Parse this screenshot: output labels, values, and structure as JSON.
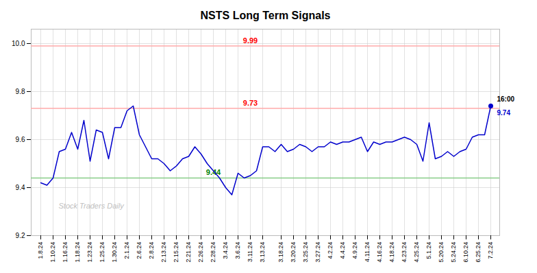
{
  "chart_data": {
    "type": "line",
    "title": "NSTS Long Term Signals",
    "categories": [
      "1.8.24",
      null,
      "1.10.24",
      null,
      "1.16.24",
      null,
      "1.18.24",
      null,
      "1.23.24",
      null,
      "1.25.24",
      null,
      "1.30.24",
      null,
      "2.1.24",
      null,
      "2.6.24",
      null,
      "2.8.24",
      null,
      "2.13.24",
      null,
      "2.15.24",
      null,
      "2.21.24",
      null,
      "2.26.24",
      null,
      "2.28.24",
      null,
      "3.4.24",
      null,
      "3.6.24",
      null,
      "3.11.24",
      null,
      "3.13.24",
      null,
      null,
      "3.18.24",
      null,
      "3.20.24",
      null,
      "3.25.24",
      null,
      "3.27.24",
      null,
      "4.2.24",
      null,
      "4.4.24",
      null,
      "4.9.24",
      null,
      "4.11.24",
      null,
      "4.16.24",
      null,
      "4.18.24",
      null,
      "4.23.24",
      null,
      "4.25.24",
      null,
      "5.1.24",
      null,
      "5.20.24",
      null,
      "5.24.24",
      null,
      "6.10.24",
      null,
      "6.25.24",
      null,
      "7.2.24"
    ],
    "values": [
      9.42,
      9.41,
      9.44,
      9.55,
      9.56,
      9.63,
      9.56,
      9.68,
      9.51,
      9.64,
      9.63,
      9.52,
      9.65,
      9.65,
      9.72,
      9.74,
      9.62,
      9.57,
      9.52,
      9.52,
      9.5,
      9.47,
      9.49,
      9.52,
      9.53,
      9.57,
      9.54,
      9.5,
      9.47,
      9.44,
      9.4,
      9.37,
      9.46,
      9.44,
      9.45,
      9.47,
      9.57,
      9.57,
      9.55,
      9.58,
      9.55,
      9.56,
      9.58,
      9.57,
      9.55,
      9.57,
      9.57,
      9.59,
      9.58,
      9.59,
      9.59,
      9.6,
      9.61,
      9.55,
      9.59,
      9.58,
      9.59,
      9.59,
      9.6,
      9.61,
      9.6,
      9.58,
      9.51,
      9.67,
      9.52,
      9.53,
      9.55,
      9.53,
      9.55,
      9.56,
      9.61,
      9.62,
      9.62,
      9.74
    ],
    "color": "#0000cc",
    "ylim": [
      9.2,
      10.06
    ],
    "yticks": [
      9.2,
      9.4,
      9.6,
      9.8,
      {
        "value": 10.0,
        "label": "10.0"
      }
    ],
    "grid": true,
    "hlines": [
      {
        "value": 9.99,
        "label": "9.99",
        "color": "#ffaaaa",
        "label_color": "red"
      },
      {
        "value": 9.73,
        "label": "9.73",
        "color": "#ffaaaa",
        "label_color": "red"
      },
      {
        "value": 9.44,
        "label": "9.44",
        "color": "#88cc88",
        "label_color": "green"
      }
    ],
    "last_point": {
      "time_label": "16:00",
      "value_label": "9.74"
    },
    "watermark": "Stock Traders Daily"
  }
}
